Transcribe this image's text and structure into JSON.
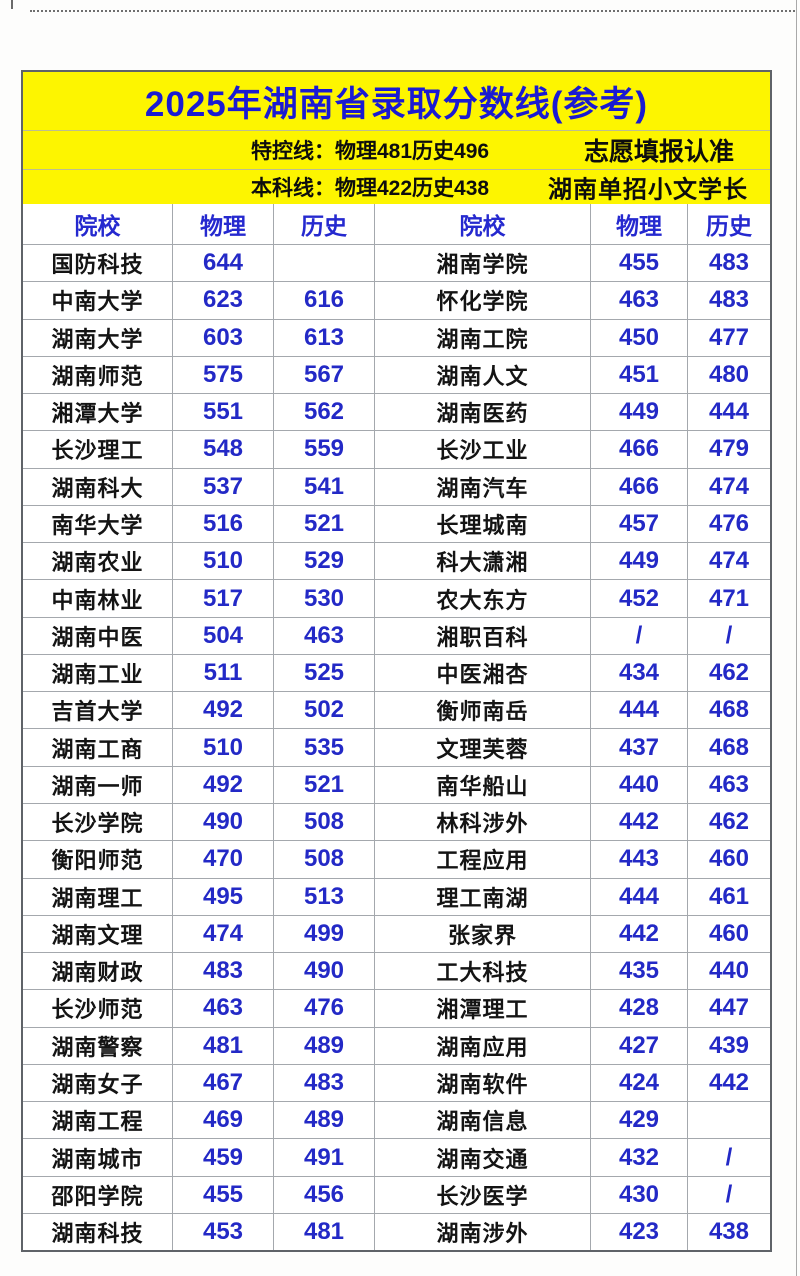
{
  "sheet": {
    "title": "2025年湖南省录取分数线(参考)",
    "info_lines": [
      {
        "left": "特控线：物理481历史496",
        "right": "志愿填报认准"
      },
      {
        "left": "本科线：物理422历史438",
        "right": "湖南单招小文学长"
      }
    ],
    "columns": [
      "院校",
      "物理",
      "历史",
      "院校",
      "物理",
      "历史"
    ],
    "colors": {
      "banner_bg": "#fdf500",
      "title_blue": "#1a1ad2",
      "header_blue": "#2529cf",
      "number_blue": "#2329c6",
      "name_black": "#141414",
      "grid_line": "#a4a8ad"
    },
    "control_lines": {
      "tekong_physics": 481,
      "tekong_history": 496,
      "benke_physics": 422,
      "benke_history": 438
    },
    "rows": [
      {
        "left": [
          "国防科技",
          "644",
          ""
        ],
        "right": [
          "湘南学院",
          "455",
          "483"
        ]
      },
      {
        "left": [
          "中南大学",
          "623",
          "616"
        ],
        "right": [
          "怀化学院",
          "463",
          "483"
        ]
      },
      {
        "left": [
          "湖南大学",
          "603",
          "613"
        ],
        "right": [
          "湖南工院",
          "450",
          "477"
        ]
      },
      {
        "left": [
          "湖南师范",
          "575",
          "567"
        ],
        "right": [
          "湖南人文",
          "451",
          "480"
        ]
      },
      {
        "left": [
          "湘潭大学",
          "551",
          "562"
        ],
        "right": [
          "湖南医药",
          "449",
          "444"
        ]
      },
      {
        "left": [
          "长沙理工",
          "548",
          "559"
        ],
        "right": [
          "长沙工业",
          "466",
          "479"
        ]
      },
      {
        "left": [
          "湖南科大",
          "537",
          "541"
        ],
        "right": [
          "湖南汽车",
          "466",
          "474"
        ]
      },
      {
        "left": [
          "南华大学",
          "516",
          "521"
        ],
        "right": [
          "长理城南",
          "457",
          "476"
        ]
      },
      {
        "left": [
          "湖南农业",
          "510",
          "529"
        ],
        "right": [
          "科大潇湘",
          "449",
          "474"
        ]
      },
      {
        "left": [
          "中南林业",
          "517",
          "530"
        ],
        "right": [
          "农大东方",
          "452",
          "471"
        ]
      },
      {
        "left": [
          "湖南中医",
          "504",
          "463"
        ],
        "right": [
          "湘职百科",
          "/",
          "/"
        ]
      },
      {
        "left": [
          "湖南工业",
          "511",
          "525"
        ],
        "right": [
          "中医湘杏",
          "434",
          "462"
        ]
      },
      {
        "left": [
          "吉首大学",
          "492",
          "502"
        ],
        "right": [
          "衡师南岳",
          "444",
          "468"
        ]
      },
      {
        "left": [
          "湖南工商",
          "510",
          "535"
        ],
        "right": [
          "文理芙蓉",
          "437",
          "468"
        ]
      },
      {
        "left": [
          "湖南一师",
          "492",
          "521"
        ],
        "right": [
          "南华船山",
          "440",
          "463"
        ]
      },
      {
        "left": [
          "长沙学院",
          "490",
          "508"
        ],
        "right": [
          "林科涉外",
          "442",
          "462"
        ]
      },
      {
        "left": [
          "衡阳师范",
          "470",
          "508"
        ],
        "right": [
          "工程应用",
          "443",
          "460"
        ]
      },
      {
        "left": [
          "湖南理工",
          "495",
          "513"
        ],
        "right": [
          "理工南湖",
          "444",
          "461"
        ]
      },
      {
        "left": [
          "湖南文理",
          "474",
          "499"
        ],
        "right": [
          "张家界",
          "442",
          "460"
        ]
      },
      {
        "left": [
          "湖南财政",
          "483",
          "490"
        ],
        "right": [
          "工大科技",
          "435",
          "440"
        ]
      },
      {
        "left": [
          "长沙师范",
          "463",
          "476"
        ],
        "right": [
          "湘潭理工",
          "428",
          "447"
        ]
      },
      {
        "left": [
          "湖南警察",
          "481",
          "489"
        ],
        "right": [
          "湖南应用",
          "427",
          "439"
        ]
      },
      {
        "left": [
          "湖南女子",
          "467",
          "483"
        ],
        "right": [
          "湖南软件",
          "424",
          "442"
        ]
      },
      {
        "left": [
          "湖南工程",
          "469",
          "489"
        ],
        "right": [
          "湖南信息",
          "429",
          ""
        ]
      },
      {
        "left": [
          "湖南城市",
          "459",
          "491"
        ],
        "right": [
          "湖南交通",
          "432",
          "/"
        ]
      },
      {
        "left": [
          "邵阳学院",
          "455",
          "456"
        ],
        "right": [
          "长沙医学",
          "430",
          "/"
        ]
      },
      {
        "left": [
          "湖南科技",
          "453",
          "481"
        ],
        "right": [
          "湖南涉外",
          "423",
          "438"
        ]
      }
    ]
  }
}
